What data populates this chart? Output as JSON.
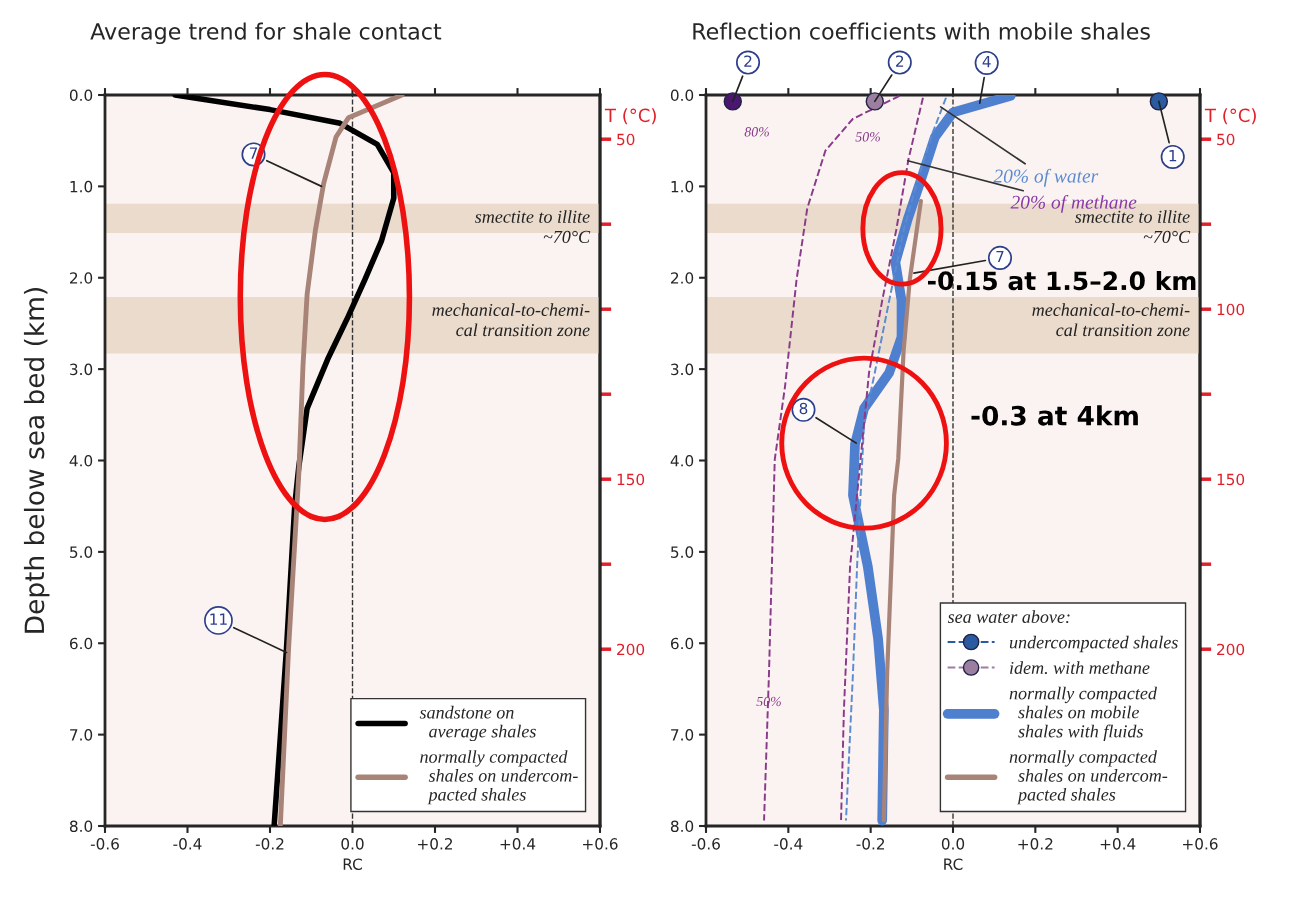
{
  "chart_data": [
    {
      "type": "line",
      "title": "Average trend for shale contact",
      "xlabel": "RC",
      "ylabel": "Depth below sea bed (km)",
      "y2label": "T (°C)",
      "xlim": [
        -0.6,
        0.6
      ],
      "xticks": [
        -0.6,
        -0.4,
        -0.2,
        {
          "value": 0,
          "label": "0.0"
        },
        {
          "value": 0.2,
          "label": "+0.2"
        },
        {
          "value": 0.4,
          "label": "+0.4"
        },
        {
          "value": 0.6,
          "label": "+0.6"
        }
      ],
      "ylim": [
        8,
        0
      ],
      "yticks": [
        {
          "value": 0,
          "label": "0.0"
        },
        {
          "value": 1,
          "label": "1.0"
        },
        {
          "value": 2,
          "label": "2.0"
        },
        {
          "value": 3,
          "label": "3.0"
        },
        {
          "value": 4,
          "label": "4.0"
        },
        {
          "value": 5,
          "label": "5.0"
        },
        {
          "value": 6,
          "label": "6.0"
        },
        {
          "value": 7,
          "label": "7.0"
        },
        {
          "value": 8,
          "label": "8.0"
        }
      ],
      "y2lim": [
        252,
        37
      ],
      "y2ticks": [
        50,
        {
          "value": 75,
          "label": null
        },
        {
          "value": 100,
          "label": null
        },
        {
          "value": 125,
          "label": null
        },
        150,
        {
          "value": 175,
          "label": null
        },
        200
      ],
      "series": [
        {
          "name": "sandstone on\n  average shales",
          "color": "#000000",
          "x": [
            -0.43,
            -0.2,
            -0.03,
            0.06,
            0.1,
            0.1,
            0.07,
            0.03,
            -0.01,
            -0.06,
            -0.11,
            -0.13,
            -0.14,
            -0.16,
            -0.19
          ],
          "values": [
            0,
            0.16,
            0.31,
            0.54,
            0.85,
            1.13,
            1.6,
            2.02,
            2.42,
            2.89,
            3.43,
            4.06,
            4.49,
            6.06,
            8.0
          ]
        },
        {
          "name": "normally compacted\n  shales on undercom-\n  pacted shales",
          "color": "#a88378",
          "x": [
            0.12,
            -0.01,
            -0.04,
            -0.07,
            -0.09,
            -0.11,
            -0.12,
            -0.13,
            -0.155,
            -0.175
          ],
          "values": [
            0,
            0.25,
            0.46,
            0.97,
            1.48,
            2.18,
            2.96,
            4.13,
            6.06,
            8.0
          ]
        }
      ],
      "bands": [
        {
          "axis": "y",
          "from": 1.19,
          "to": 1.51,
          "label": "smectite to illite\n~70°C",
          "color": "#eadbcc"
        },
        {
          "axis": "y",
          "from": 2.21,
          "to": 2.83,
          "label": "mechanical-to-chemi-\ncal transition zone",
          "color": "#eadbcc"
        }
      ],
      "ref_lines": [
        {
          "axis": "x",
          "value": 0,
          "color": "#333333",
          "line_style": "dashed"
        }
      ],
      "legend": "bottom right",
      "annotations": [
        {
          "text": "7",
          "x": -0.075,
          "y": 1.0
        },
        {
          "text": "11",
          "x": -0.16,
          "y": 6.1
        }
      ]
    },
    {
      "type": "line",
      "title": "Reflection coefficients with mobile shales",
      "xlabel": "RC",
      "y2label": "T (°C)",
      "legend_title": "sea water above:",
      "xlim": [
        -0.6,
        0.6
      ],
      "xticks": [
        -0.6,
        -0.4,
        -0.2,
        {
          "value": 0,
          "label": "0.0"
        },
        {
          "value": 0.2,
          "label": "+0.2"
        },
        {
          "value": 0.4,
          "label": "+0.4"
        },
        {
          "value": 0.6,
          "label": "+0.6"
        }
      ],
      "ylim": [
        8,
        0
      ],
      "yticks": [
        {
          "value": 0,
          "label": "0.0"
        },
        {
          "value": 1,
          "label": "1.0"
        },
        {
          "value": 2,
          "label": "2.0"
        },
        {
          "value": 3,
          "label": "3.0"
        },
        {
          "value": 4,
          "label": "4.0"
        },
        {
          "value": 5,
          "label": "5.0"
        },
        {
          "value": 6,
          "label": "6.0"
        },
        {
          "value": 7,
          "label": "7.0"
        },
        {
          "value": 8,
          "label": "8.0"
        }
      ],
      "y2lim": [
        252,
        37
      ],
      "y2ticks": [
        50,
        {
          "value": 75,
          "label": null
        },
        100,
        {
          "value": 125,
          "label": null
        },
        150,
        {
          "value": 175,
          "label": null
        },
        200
      ],
      "series": [
        {
          "name": "normally compacted\n  shales on mobile\n  shales with fluids",
          "color": "#4f7fcf",
          "x": [
            0.14,
            0,
            -0.044,
            -0.078,
            -0.11,
            -0.14,
            -0.125,
            -0.125,
            -0.155,
            -0.216,
            -0.238,
            -0.243,
            -0.207,
            -0.182,
            -0.168,
            -0.172
          ],
          "values": [
            0.01,
            0.19,
            0.46,
            0.93,
            1.36,
            1.83,
            2.25,
            2.65,
            3.04,
            3.43,
            3.82,
            4.38,
            5.16,
            5.95,
            6.73,
            7.94
          ]
        },
        {
          "name": "normally compacted\n  shales on undercom-\n  pacted shales",
          "color": "#a88378",
          "x": [
            -0.078,
            -0.105,
            -0.12,
            -0.133,
            -0.143,
            -0.16,
            -0.168
          ],
          "values": [
            1.16,
            2.02,
            2.8,
            3.98,
            4.38,
            6.33,
            7.94
          ]
        },
        {
          "color": "#5b8bd0",
          "line_style": "dashed",
          "x": [
            -0.017,
            -0.05,
            -0.086,
            -0.12,
            -0.155,
            -0.19,
            -0.216,
            -0.233,
            -0.243,
            -0.26
          ],
          "values": [
            0.03,
            0.42,
            0.93,
            1.48,
            2.25,
            3.04,
            3.59,
            5.16,
            6.33,
            7.94
          ]
        },
        {
          "color": "#8a3a8a",
          "line_style": "dashed",
          "x": [
            -0.073,
            -0.108,
            -0.138,
            -0.172,
            -0.204,
            -0.25,
            -0.265,
            -0.272
          ],
          "values": [
            0.03,
            0.7,
            1.48,
            2.25,
            3.04,
            5.16,
            6.73,
            7.94
          ]
        },
        {
          "color": "#8a3a8a",
          "line_style": "dashed",
          "x": [
            -0.13,
            -0.243,
            -0.31,
            -0.354,
            -0.38,
            -0.408,
            -0.433,
            -0.447,
            -0.459
          ],
          "values": [
            0.01,
            0.26,
            0.61,
            1.24,
            2.02,
            3.19,
            3.99,
            6.33,
            7.94
          ]
        },
        {
          "type": "scatter",
          "name": "undercompacted shales",
          "color": "#2a5a9f",
          "marker": "circle",
          "line_style": "dashed",
          "x": [
            0.5
          ],
          "values": [
            0.07
          ]
        },
        {
          "type": "scatter",
          "name": "idem. with methane",
          "color": "#9b7ea0",
          "colors": [
            "#4a1670",
            "#9b7ea0"
          ],
          "marker": "circle",
          "line_style": "dashed",
          "x": [
            -0.535,
            -0.19
          ],
          "values": [
            0.07,
            0.07
          ]
        }
      ],
      "bands": [
        {
          "axis": "y",
          "from": 1.19,
          "to": 1.51,
          "label": "smectite to illite\n~70°C",
          "color": "#eadbcc"
        },
        {
          "axis": "y",
          "from": 2.21,
          "to": 2.83,
          "label": "mechanical-to-chemi-\ncal transition zone",
          "color": "#eadbcc"
        }
      ],
      "ref_lines": [
        {
          "axis": "x",
          "value": 0,
          "color": "#333333",
          "line_style": "dashed"
        }
      ],
      "legend": "bottom right",
      "annotations": [
        {
          "text": "2",
          "x": -0.535,
          "y": 0.07
        },
        {
          "text": "2",
          "x": -0.19,
          "y": 0.07
        },
        {
          "text": "4",
          "x": 0.065,
          "y": 0.09
        },
        {
          "text": "1",
          "x": 0.5,
          "y": 0.07
        },
        {
          "text": "20% of water",
          "x": -0.03,
          "y": 0.13
        },
        {
          "text": "20% of methane",
          "x": -0.11,
          "y": 0.72
        },
        "80%",
        "50%",
        {
          "text": "7",
          "x": -0.095,
          "y": 1.95
        },
        {
          "text": "8",
          "x": -0.235,
          "y": 3.81
        },
        {
          "text": "50%",
          "x": -0.447,
          "y": 6.65
        },
        "-0.15 at 1.5–2.0 km",
        "-0.3 at 4km"
      ]
    }
  ]
}
